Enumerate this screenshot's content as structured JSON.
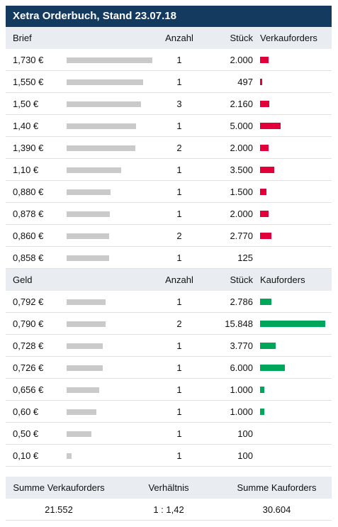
{
  "title": "Xetra Orderbuch, Stand 23.07.18",
  "ask_header": {
    "price": "Brief",
    "count": "Anzahl",
    "qty": "Stück",
    "orders": "Verkauforders"
  },
  "bid_header": {
    "price": "Geld",
    "count": "Anzahl",
    "qty": "Stück",
    "orders": "Kauforders"
  },
  "summary": {
    "label_sell": "Summe Verkauforders",
    "label_ratio": "Verhältnis",
    "label_buy": "Summe Kauforders",
    "sell": "21.552",
    "ratio": "1 : 1,42",
    "buy": "30.604"
  },
  "colors": {
    "header_bg": "#143a60",
    "ask": "#e2003b",
    "bid": "#00a65a",
    "volume_bar": "#cacaca"
  },
  "chart_data": {
    "type": "table",
    "title": "Xetra Orderbuch, Stand 23.07.18",
    "ask": [
      {
        "price": "1,730 €",
        "price_value": 1.73,
        "count": "1",
        "qty": "2.000",
        "qty_value": 2000
      },
      {
        "price": "1,550 €",
        "price_value": 1.55,
        "count": "1",
        "qty": "497",
        "qty_value": 497
      },
      {
        "price": "1,50 €",
        "price_value": 1.5,
        "count": "3",
        "qty": "2.160",
        "qty_value": 2160
      },
      {
        "price": "1,40 €",
        "price_value": 1.4,
        "count": "1",
        "qty": "5.000",
        "qty_value": 5000
      },
      {
        "price": "1,390 €",
        "price_value": 1.39,
        "count": "2",
        "qty": "2.000",
        "qty_value": 2000
      },
      {
        "price": "1,10 €",
        "price_value": 1.1,
        "count": "1",
        "qty": "3.500",
        "qty_value": 3500
      },
      {
        "price": "0,880 €",
        "price_value": 0.88,
        "count": "1",
        "qty": "1.500",
        "qty_value": 1500
      },
      {
        "price": "0,878 €",
        "price_value": 0.878,
        "count": "1",
        "qty": "2.000",
        "qty_value": 2000
      },
      {
        "price": "0,860 €",
        "price_value": 0.86,
        "count": "2",
        "qty": "2.770",
        "qty_value": 2770
      },
      {
        "price": "0,858 €",
        "price_value": 0.858,
        "count": "1",
        "qty": "125",
        "qty_value": 125
      }
    ],
    "bid": [
      {
        "price": "0,792 €",
        "price_value": 0.792,
        "count": "1",
        "qty": "2.786",
        "qty_value": 2786
      },
      {
        "price": "0,790 €",
        "price_value": 0.79,
        "count": "2",
        "qty": "15.848",
        "qty_value": 15848
      },
      {
        "price": "0,728 €",
        "price_value": 0.728,
        "count": "1",
        "qty": "3.770",
        "qty_value": 3770
      },
      {
        "price": "0,726 €",
        "price_value": 0.726,
        "count": "1",
        "qty": "6.000",
        "qty_value": 6000
      },
      {
        "price": "0,656 €",
        "price_value": 0.656,
        "count": "1",
        "qty": "1.000",
        "qty_value": 1000
      },
      {
        "price": "0,60 €",
        "price_value": 0.6,
        "count": "1",
        "qty": "1.000",
        "qty_value": 1000
      },
      {
        "price": "0,50 €",
        "price_value": 0.5,
        "count": "1",
        "qty": "100",
        "qty_value": 100
      },
      {
        "price": "0,10 €",
        "price_value": 0.1,
        "count": "1",
        "qty": "100",
        "qty_value": 100
      }
    ]
  }
}
